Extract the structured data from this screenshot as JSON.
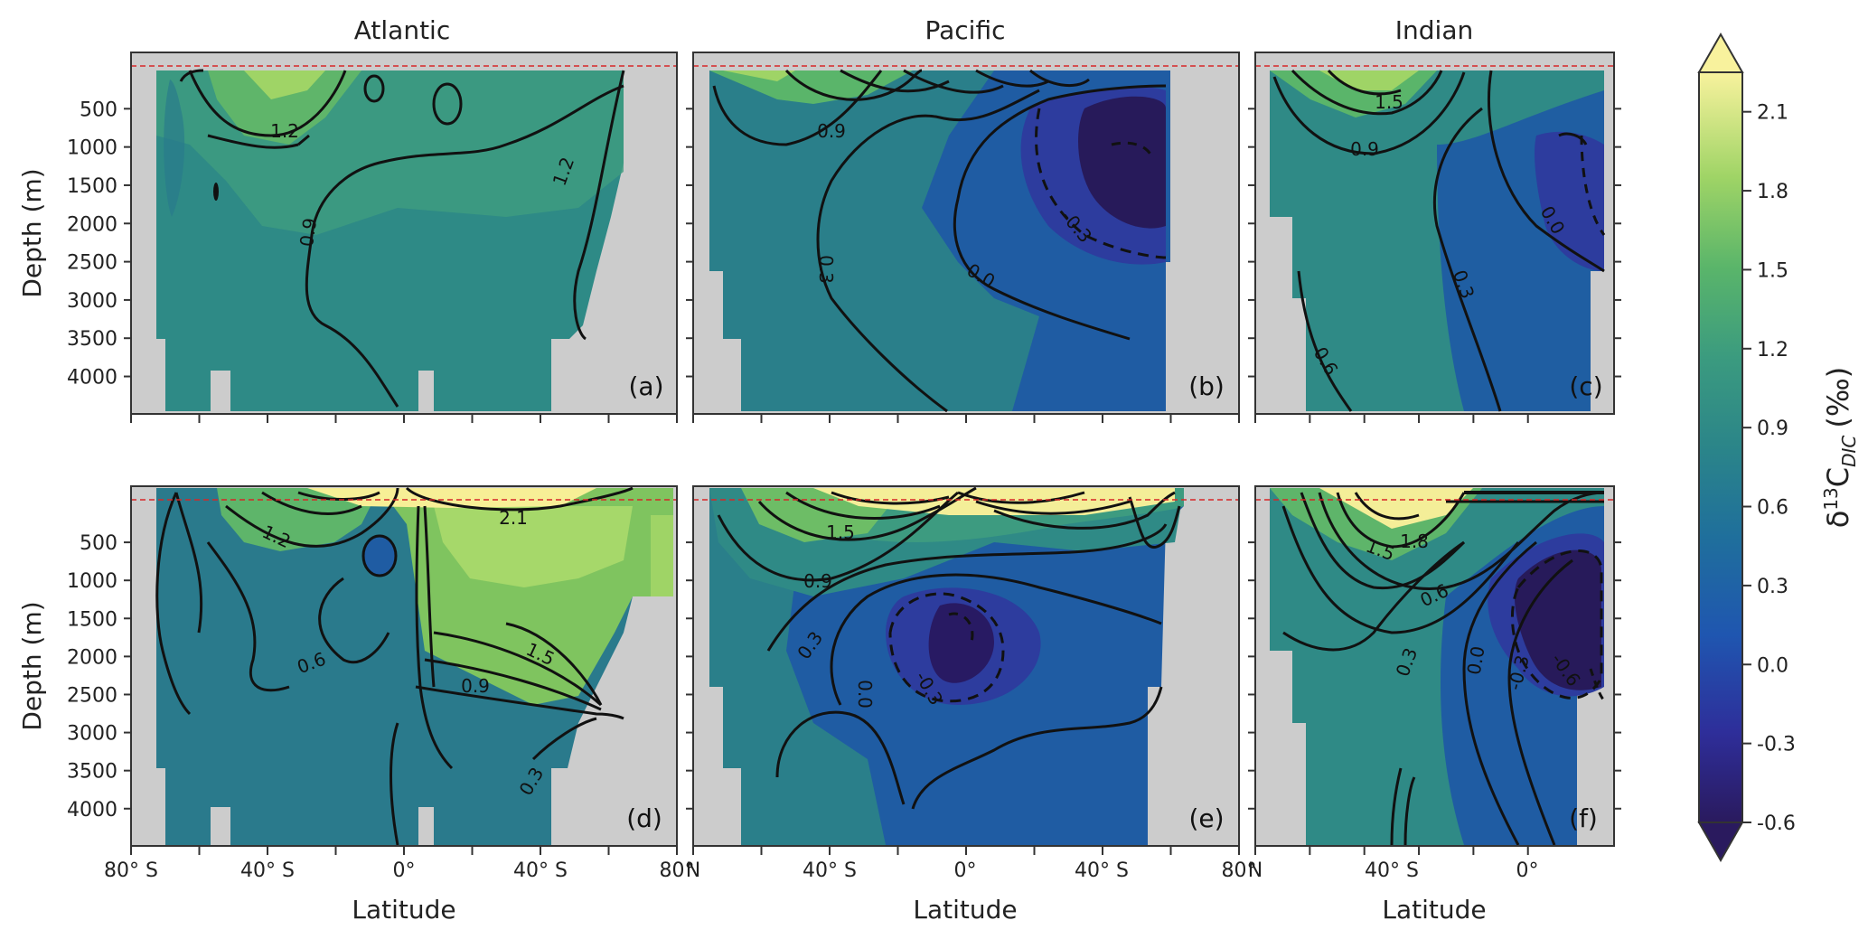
{
  "chart_data": {
    "type": "heatmap",
    "description_units": "Depth in m, latitude in degrees",
    "panels": [
      {
        "id": "a",
        "label": "(a)",
        "title": "Atlantic",
        "row": 0,
        "col": 0,
        "ylabel": "Depth (m)",
        "xlabel": ""
      },
      {
        "id": "b",
        "label": "(b)",
        "title": "Pacific",
        "row": 0,
        "col": 1,
        "ylabel": "",
        "xlabel": ""
      },
      {
        "id": "c",
        "label": "(c)",
        "title": "Indian",
        "row": 0,
        "col": 2,
        "ylabel": "",
        "xlabel": ""
      },
      {
        "id": "d",
        "label": "(d)",
        "title": "",
        "row": 1,
        "col": 0,
        "ylabel": "Depth (m)",
        "xlabel": "Latitude"
      },
      {
        "id": "e",
        "label": "(e)",
        "title": "",
        "row": 1,
        "col": 1,
        "ylabel": "",
        "xlabel": "Latitude"
      },
      {
        "id": "f",
        "label": "(f)",
        "title": "",
        "row": 1,
        "col": 2,
        "ylabel": "",
        "xlabel": "Latitude"
      }
    ],
    "y_ticks": [
      500,
      1000,
      1500,
      2000,
      2500,
      3000,
      3500,
      4000
    ],
    "y_tick_labels": [
      "500",
      "1000",
      "1500",
      "2000",
      "2500",
      "3000",
      "3500",
      "4000"
    ],
    "x_tick_labels_atlantic": [
      "80° S",
      "40° S",
      "0°",
      "40° S",
      "80°"
    ],
    "x_tick_labels_pacific": [
      "N",
      "40° S",
      "0°",
      "40° S",
      "80°"
    ],
    "x_tick_labels_indian": [
      "N",
      "40° S",
      "0°"
    ],
    "contour_labels": {
      "a": [
        "1.2",
        "0.9",
        "1.2"
      ],
      "b": [
        "0.9",
        "0.3",
        "0.0",
        "-0.3"
      ],
      "c": [
        "1.5",
        "0.9",
        "0.0",
        "0.3",
        "0.6"
      ],
      "d": [
        "1.2",
        "2.1",
        "0.6",
        "1.5",
        "0.9",
        "0.3"
      ],
      "e": [
        "1.5",
        "0.9",
        "0.3",
        "0.0",
        "-0.3"
      ],
      "f": [
        "1.5",
        "1.8",
        "0.6",
        "0.3",
        "0.0",
        "-0.3",
        "-0.6"
      ]
    },
    "colorbar": {
      "label_main": "δ",
      "label_sup": "13",
      "label_c": "C",
      "label_sub": "DIC",
      "label_units": "(‰)",
      "ticks": [
        2.1,
        1.8,
        1.5,
        1.2,
        0.9,
        0.6,
        0.3,
        0.0,
        -0.3,
        -0.6
      ],
      "tick_labels": [
        "2.1",
        "1.8",
        "1.5",
        "1.2",
        "0.9",
        "0.6",
        "0.3",
        "0.0",
        "-0.3",
        "-0.6"
      ],
      "range": [
        -0.6,
        2.25
      ]
    },
    "colors": {
      "land": "#cccccc",
      "surface_line": "#d62728",
      "c_low": "#271a5a",
      "c_mid": "#1f5ca3",
      "c_teal": "#2e7f8a",
      "c_green": "#63b765",
      "c_high": "#fbf29a"
    }
  }
}
